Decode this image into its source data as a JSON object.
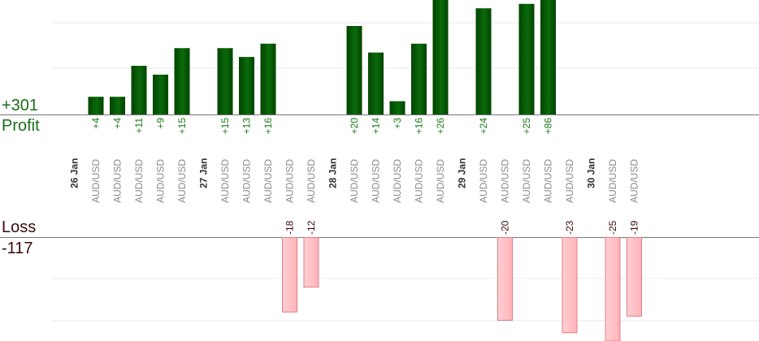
{
  "summary": {
    "profit_total": "+301",
    "profit_label": "Profit",
    "loss_label": "Loss",
    "loss_total": "-117"
  },
  "colors": {
    "profit_bar": "#0b6a0b",
    "profit_bar_dark": "#004400",
    "profit_text": "#1a7a1a",
    "loss_bar": "#ffb3b8",
    "loss_bar_border": "#e07d86",
    "loss_text": "#3a0a0a",
    "grid": "#e9e9e9",
    "axis": "#777777",
    "category_text": "#8a8a8a",
    "date_text": "#333333"
  },
  "chart_data": {
    "type": "bar",
    "title": "",
    "xlabel": "",
    "ylabel": "",
    "days": [
      {
        "date": "26 Jan",
        "trades": [
          {
            "label": "AUD/USD",
            "value": 4
          },
          {
            "label": "AUD/USD",
            "value": 4
          },
          {
            "label": "AUD/USD",
            "value": 11
          },
          {
            "label": "AUD/USD",
            "value": 9
          },
          {
            "label": "AUD/USD",
            "value": 15
          }
        ]
      },
      {
        "date": "27 Jan",
        "trades": [
          {
            "label": "AUD/USD",
            "value": 15
          },
          {
            "label": "AUD/USD",
            "value": 13
          },
          {
            "label": "AUD/USD",
            "value": 16
          },
          {
            "label": "AUD/USD",
            "value": -18
          },
          {
            "label": "AUD/USD",
            "value": -12
          }
        ]
      },
      {
        "date": "28 Jan",
        "trades": [
          {
            "label": "AUD/USD",
            "value": 20
          },
          {
            "label": "AUD/USD",
            "value": 14
          },
          {
            "label": "AUD/USD",
            "value": 3
          },
          {
            "label": "AUD/USD",
            "value": 16
          },
          {
            "label": "AUD/USD",
            "value": 26
          }
        ]
      },
      {
        "date": "29 Jan",
        "trades": [
          {
            "label": "AUD/USD",
            "value": 24
          },
          {
            "label": "AUD/USD",
            "value": -20
          },
          {
            "label": "AUD/USD",
            "value": 25
          },
          {
            "label": "AUD/USD",
            "value": 86
          },
          {
            "label": "AUD/USD",
            "value": -23
          }
        ]
      },
      {
        "date": "30 Jan",
        "trades": [
          {
            "label": "AUD/USD",
            "value": -25
          },
          {
            "label": "AUD/USD",
            "value": -19
          }
        ]
      }
    ],
    "value_labels": {
      "4": "+4",
      "11": "+11",
      "9": "+9",
      "15": "+15",
      "13": "+13",
      "16": "+16",
      "20": "+20",
      "14": "+14",
      "3": "+3",
      "26": "+26",
      "24": "+24",
      "25": "+25",
      "86": "+86",
      "-18": "-18",
      "-12": "-12",
      "-20": "-20",
      "-23": "-23",
      "-25": "-25",
      "-19": "-19"
    },
    "profit_ylim": [
      0,
      26
    ],
    "loss_ylim": [
      -23,
      0
    ],
    "grid": true,
    "legend": "none"
  }
}
